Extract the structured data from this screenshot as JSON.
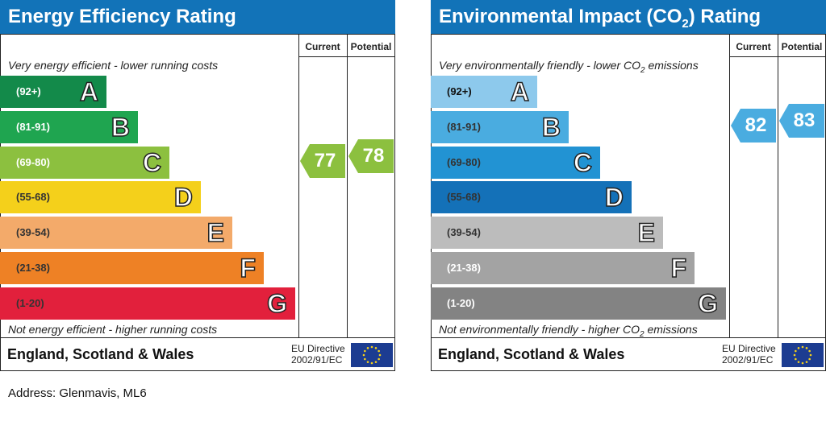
{
  "chart_data": [
    {
      "type": "bar",
      "title": "Energy Efficiency Rating",
      "columns": [
        "Current",
        "Potential"
      ],
      "top_label": "Very energy efficient - lower running costs",
      "bottom_label": "Not energy efficient - higher running costs",
      "bands": [
        {
          "letter": "A",
          "range": "(92+)",
          "color": "#138a4a",
          "text_color": "#ffffff"
        },
        {
          "letter": "B",
          "range": "(81-91)",
          "color": "#1fa550",
          "text_color": "#ffffff"
        },
        {
          "letter": "C",
          "range": "(69-80)",
          "color": "#8cc03f",
          "text_color": "#ffffff"
        },
        {
          "letter": "D",
          "range": "(55-68)",
          "color": "#f4d01b",
          "text_color": "#333333"
        },
        {
          "letter": "E",
          "range": "(39-54)",
          "color": "#f3aa6a",
          "text_color": "#333333"
        },
        {
          "letter": "F",
          "range": "(21-38)",
          "color": "#ee8125",
          "text_color": "#333333"
        },
        {
          "letter": "G",
          "range": "(1-20)",
          "color": "#e2203c",
          "text_color": "#333333"
        }
      ],
      "current": {
        "value": "77",
        "band": "C",
        "color": "#8cc03f"
      },
      "potential": {
        "value": "78",
        "band": "C",
        "color": "#8cc03f"
      },
      "region": "England, Scotland & Wales",
      "directive_line1": "EU Directive",
      "directive_line2": "2002/91/EC"
    },
    {
      "type": "bar",
      "title": "Environmental Impact (CO",
      "title_sub": "2",
      "title_end": ") Rating",
      "columns": [
        "Current",
        "Potential"
      ],
      "top_label": "Very environmentally friendly - lower CO",
      "top_label_sub": "2",
      "top_label_end": " emissions",
      "bottom_label": "Not environmentally friendly - higher CO",
      "bottom_label_sub": "2",
      "bottom_label_end": " emissions",
      "bands": [
        {
          "letter": "A",
          "range": "(92+)",
          "color": "#8dc9ec",
          "text_color": "#111111"
        },
        {
          "letter": "B",
          "range": "(81-91)",
          "color": "#4aace0",
          "text_color": "#333333"
        },
        {
          "letter": "C",
          "range": "(69-80)",
          "color": "#2293d3",
          "text_color": "#333333"
        },
        {
          "letter": "D",
          "range": "(55-68)",
          "color": "#1471b8",
          "text_color": "#333333"
        },
        {
          "letter": "E",
          "range": "(39-54)",
          "color": "#bcbcbc",
          "text_color": "#333333"
        },
        {
          "letter": "F",
          "range": "(21-38)",
          "color": "#a3a3a3",
          "text_color": "#ffffff"
        },
        {
          "letter": "G",
          "range": "(1-20)",
          "color": "#838383",
          "text_color": "#ffffff"
        }
      ],
      "current": {
        "value": "82",
        "band": "B",
        "color": "#4aace0"
      },
      "potential": {
        "value": "83",
        "band": "B",
        "color": "#4aace0"
      },
      "region": "England, Scotland & Wales",
      "directive_line1": "EU Directive",
      "directive_line2": "2002/91/EC"
    }
  ],
  "address": "Address: Glenmavis, ML6"
}
